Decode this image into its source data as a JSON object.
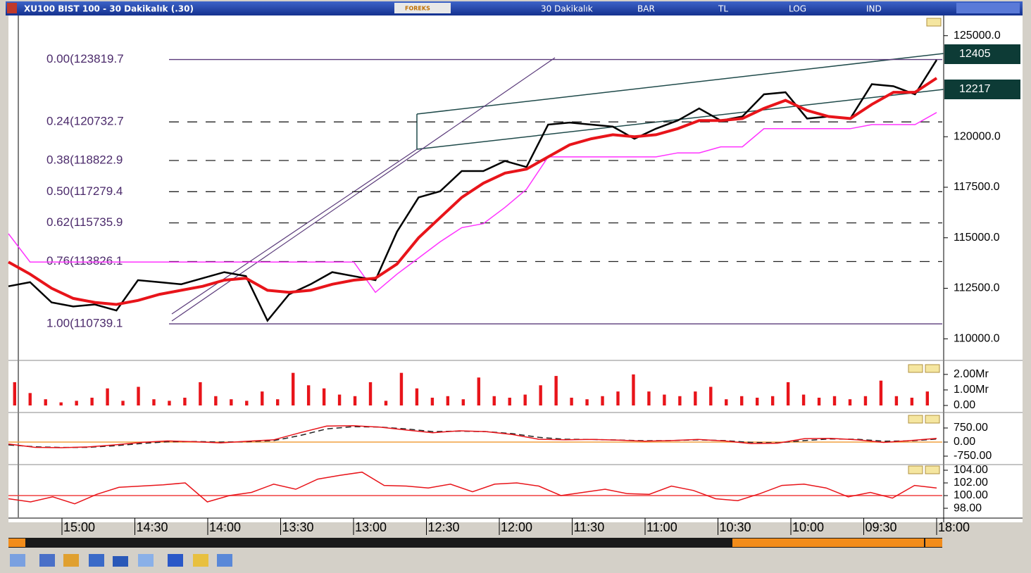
{
  "window": {
    "title": "XU100 BIST 100 - 30 Dakikalık (.30)",
    "toolbar": [
      "FOREKS",
      "30 Dakikalık",
      "BAR",
      "TL",
      "LOG",
      "IND"
    ]
  },
  "price_panel": {
    "ylim": [
      109000,
      126000
    ],
    "yticks": [
      {
        "value": 125000,
        "label": "125000.0"
      },
      {
        "value": 120000,
        "label": "120000.0"
      },
      {
        "value": 117500,
        "label": "117500.0"
      },
      {
        "value": 115000,
        "label": "115000.0"
      },
      {
        "value": 112500,
        "label": "112500.0"
      },
      {
        "value": 110000,
        "label": "110000.0"
      }
    ],
    "fib_levels": [
      {
        "value": 123819.7,
        "label": "0.00(123819.7"
      },
      {
        "value": 120732.7,
        "label": "0.24(120732.7"
      },
      {
        "value": 118822.9,
        "label": "0.38(118822.9"
      },
      {
        "value": 117279.4,
        "label": "0.50(117279.4"
      },
      {
        "value": 115735.9,
        "label": "0.62(115735.9"
      },
      {
        "value": 113826.1,
        "label": "0.76(113826.1"
      },
      {
        "value": 110739.1,
        "label": "1.00(110739.1"
      }
    ],
    "last_labels": [
      "12405",
      "12217"
    ],
    "close": [
      112600,
      112800,
      111800,
      111600,
      111700,
      111400,
      112900,
      112800,
      112700,
      113000,
      113300,
      113100,
      110900,
      112200,
      112700,
      113300,
      113100,
      112900,
      115300,
      117000,
      117300,
      118300,
      118300,
      118800,
      118500,
      120600,
      120700,
      120600,
      120500,
      119900,
      120400,
      120800,
      121400,
      120800,
      121000,
      122100,
      122200,
      120900,
      121000,
      120900,
      122600,
      122500,
      122100,
      123800
    ],
    "ma": [
      113800,
      113200,
      112500,
      112000,
      111800,
      111700,
      111900,
      112200,
      112400,
      112600,
      112900,
      113000,
      112400,
      112300,
      112400,
      112700,
      112900,
      113000,
      113700,
      115000,
      116000,
      117000,
      117700,
      118200,
      118400,
      119000,
      119600,
      119900,
      120100,
      120000,
      120100,
      120400,
      120800,
      120800,
      120900,
      121400,
      121800,
      121300,
      121000,
      120900,
      121600,
      122200,
      122200,
      122900
    ],
    "stop": [
      115200,
      113800,
      113800,
      113800,
      113800,
      113800,
      113800,
      113800,
      113800,
      113800,
      113800,
      113800,
      113800,
      113800,
      113800,
      113800,
      113800,
      112300,
      113200,
      114000,
      114800,
      115500,
      115700,
      116500,
      117400,
      119000,
      119000,
      119000,
      119000,
      119000,
      119000,
      119200,
      119200,
      119500,
      119500,
      120400,
      120400,
      120400,
      120400,
      120400,
      120600,
      120600,
      120600,
      121200
    ]
  },
  "volume_panel": {
    "ylim": [
      0,
      2.72
    ],
    "yticks": [
      {
        "value": 2,
        "label": "2.00Mr"
      },
      {
        "value": 1,
        "label": "1.00Mr"
      },
      {
        "value": 0,
        "label": "0.00"
      }
    ],
    "values": [
      1.5,
      0.8,
      0.4,
      0.2,
      0.3,
      0.5,
      1.1,
      0.3,
      1.2,
      0.4,
      0.3,
      0.5,
      1.5,
      0.6,
      0.4,
      0.3,
      0.9,
      0.4,
      2.1,
      1.3,
      1.1,
      0.7,
      0.6,
      1.5,
      0.3,
      2.1,
      1.1,
      0.5,
      0.6,
      0.4,
      1.8,
      0.6,
      0.5,
      0.7,
      1.3,
      1.9,
      0.5,
      0.4,
      0.6,
      0.9,
      2.0,
      0.9,
      0.7,
      0.6,
      0.9,
      1.2,
      0.4,
      0.6,
      0.5,
      0.6,
      1.5,
      0.7,
      0.5,
      0.6,
      0.4,
      0.6,
      1.6,
      0.6,
      0.5,
      0.9
    ]
  },
  "osc_panel": {
    "ylim": [
      -1125,
      1500
    ],
    "yticks": [
      {
        "value": 750,
        "label": "750.00"
      },
      {
        "value": 0,
        "label": "0.00"
      },
      {
        "value": -750,
        "label": "-750.00"
      }
    ],
    "zero_line": 0,
    "fast": [
      -100,
      -280,
      -300,
      -260,
      -150,
      -20,
      60,
      20,
      -40,
      40,
      120,
      500,
      850,
      870,
      800,
      640,
      500,
      600,
      560,
      400,
      150,
      120,
      140,
      100,
      50,
      80,
      140,
      60,
      -80,
      -60,
      180,
      200,
      120,
      -20,
      80,
      200
    ],
    "slow": [
      -150,
      -250,
      -290,
      -280,
      -200,
      -80,
      20,
      30,
      0,
      20,
      80,
      350,
      700,
      820,
      800,
      700,
      560,
      580,
      560,
      450,
      250,
      150,
      140,
      110,
      70,
      80,
      120,
      80,
      -20,
      -40,
      80,
      170,
      150,
      50,
      60,
      160
    ]
  },
  "rsi_panel": {
    "ylim": [
      96.56,
      104.89
    ],
    "yticks": [
      {
        "value": 104,
        "label": "104.00"
      },
      {
        "value": 102,
        "label": "102.00"
      },
      {
        "value": 100,
        "label": "100.00"
      },
      {
        "value": 98,
        "label": "98.00"
      }
    ],
    "ref_line": 100,
    "values": [
      99.5,
      99.0,
      99.8,
      98.7,
      100.2,
      101.3,
      101.5,
      101.7,
      102.0,
      99.0,
      100.0,
      100.5,
      101.8,
      101.0,
      102.6,
      103.2,
      103.7,
      101.6,
      101.5,
      101.2,
      101.8,
      100.6,
      101.8,
      102.0,
      101.5,
      100.0,
      100.5,
      101.0,
      100.3,
      100.2,
      101.5,
      100.8,
      99.5,
      99.2,
      100.3,
      101.6,
      101.8,
      101.2,
      99.8,
      100.5,
      99.6,
      101.6,
      101.2
    ]
  },
  "time_axis": [
    "15:00",
    "14:30",
    "14:00",
    "13:30",
    "13:00",
    "12:30",
    "12:00",
    "11:30",
    "11:00",
    "10:30",
    "10:00",
    "09:30",
    "18:00"
  ]
}
